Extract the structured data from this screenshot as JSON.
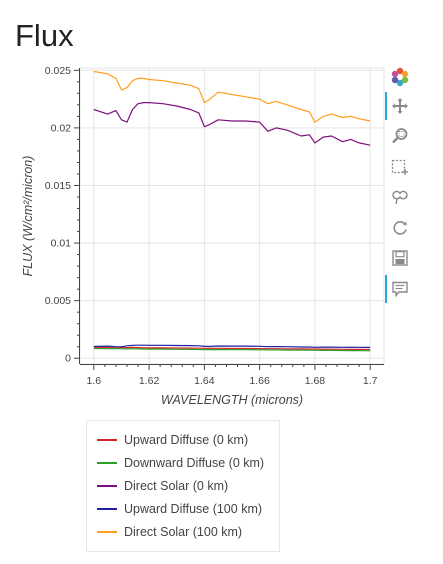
{
  "page": {
    "title": "Flux"
  },
  "toolbar": {
    "items": [
      {
        "name": "bokeh-logo",
        "icon": "bokeh-logo-icon"
      },
      {
        "name": "pan",
        "icon": "pan-icon",
        "active": true
      },
      {
        "name": "box-zoom",
        "icon": "box-zoom-icon"
      },
      {
        "name": "box-select",
        "icon": "box-select-icon"
      },
      {
        "name": "lasso-select",
        "icon": "lasso-icon"
      },
      {
        "name": "reset",
        "icon": "reset-icon"
      },
      {
        "name": "save",
        "icon": "save-icon"
      },
      {
        "name": "hover",
        "icon": "hover-icon",
        "active": true
      }
    ]
  },
  "chart_data": {
    "type": "line",
    "title": "Flux",
    "xlabel": "WAVELENGTH (microns)",
    "ylabel": "FLUX (W/cm²/micron)",
    "xlim": [
      1.595,
      1.705
    ],
    "ylim": [
      -0.0005,
      0.0252
    ],
    "x_ticks": [
      1.6,
      1.62,
      1.64,
      1.66,
      1.68,
      1.7
    ],
    "x_tick_labels": [
      "1.6",
      "1.62",
      "1.64",
      "1.66",
      "1.68",
      "1.7"
    ],
    "y_ticks": [
      0,
      0.005,
      0.01,
      0.015,
      0.02,
      0.025
    ],
    "y_tick_labels": [
      "0",
      "0.005",
      "0.01",
      "0.015",
      "0.02",
      "0.025"
    ],
    "grid": true,
    "legend_position": "bottom-left",
    "x": [
      1.6,
      1.605,
      1.608,
      1.61,
      1.612,
      1.614,
      1.616,
      1.618,
      1.62,
      1.625,
      1.63,
      1.635,
      1.638,
      1.64,
      1.642,
      1.645,
      1.65,
      1.655,
      1.66,
      1.663,
      1.666,
      1.67,
      1.675,
      1.678,
      1.68,
      1.683,
      1.686,
      1.69,
      1.693,
      1.696,
      1.7
    ],
    "series": [
      {
        "name": "Upward Diffuse (0 km)",
        "color": "#d62728",
        "values": [
          0.00095,
          0.00094,
          0.00096,
          0.00093,
          0.00092,
          0.00094,
          0.00092,
          0.00091,
          0.0009,
          0.0009,
          0.00089,
          0.00088,
          0.00087,
          0.00086,
          0.00087,
          0.00086,
          0.00085,
          0.00085,
          0.00084,
          0.00083,
          0.00083,
          0.00082,
          0.00081,
          0.0008,
          0.0008,
          0.00079,
          0.00079,
          0.00078,
          0.00077,
          0.00077,
          0.00076
        ]
      },
      {
        "name": "Downward Diffuse (0 km)",
        "color": "#2ca02c",
        "values": [
          0.00085,
          0.00083,
          0.00085,
          0.00082,
          0.00081,
          0.00083,
          0.00081,
          0.0008,
          0.0008,
          0.00079,
          0.00078,
          0.00077,
          0.00076,
          0.00075,
          0.00076,
          0.00075,
          0.00074,
          0.00074,
          0.00073,
          0.00072,
          0.00072,
          0.00071,
          0.0007,
          0.0007,
          0.00069,
          0.00068,
          0.00068,
          0.00067,
          0.00066,
          0.00066,
          0.00065
        ]
      },
      {
        "name": "Direct Solar (0 km)",
        "color": "#7f0f7f",
        "values": [
          0.0216,
          0.0212,
          0.0215,
          0.0207,
          0.0205,
          0.0216,
          0.0221,
          0.0222,
          0.0222,
          0.0221,
          0.0219,
          0.0216,
          0.0213,
          0.0201,
          0.0203,
          0.0207,
          0.0206,
          0.0206,
          0.0205,
          0.0197,
          0.02,
          0.0198,
          0.0193,
          0.0194,
          0.0187,
          0.0192,
          0.0193,
          0.0188,
          0.019,
          0.0187,
          0.0185
        ]
      },
      {
        "name": "Upward Diffuse (100 km)",
        "color": "#1f1f9f",
        "values": [
          0.00102,
          0.00105,
          0.001,
          0.00099,
          0.00108,
          0.00112,
          0.00113,
          0.00113,
          0.00112,
          0.00112,
          0.00111,
          0.0011,
          0.00108,
          0.00103,
          0.00104,
          0.00106,
          0.00105,
          0.00105,
          0.00104,
          0.001,
          0.00101,
          0.001,
          0.00098,
          0.00098,
          0.00095,
          0.00097,
          0.00097,
          0.00095,
          0.00096,
          0.00095,
          0.00094
        ]
      },
      {
        "name": "Direct Solar (100 km)",
        "color": "#ff9f1f",
        "values": [
          0.0249,
          0.0247,
          0.0243,
          0.0233,
          0.0235,
          0.0241,
          0.0243,
          0.0243,
          0.0242,
          0.0241,
          0.0239,
          0.0237,
          0.0234,
          0.0222,
          0.0225,
          0.0231,
          0.0229,
          0.0227,
          0.0225,
          0.0221,
          0.0223,
          0.022,
          0.0216,
          0.0214,
          0.0205,
          0.021,
          0.0212,
          0.0209,
          0.021,
          0.0208,
          0.0206
        ]
      }
    ]
  }
}
